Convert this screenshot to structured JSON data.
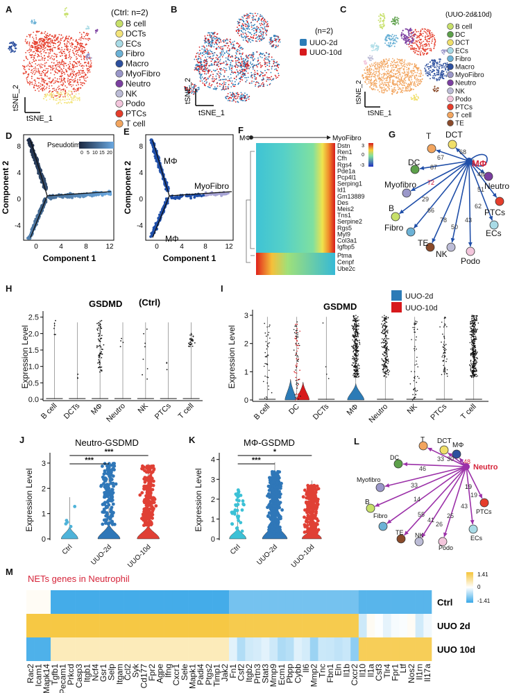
{
  "panel_labels": {
    "A": "A",
    "B": "B",
    "C": "C",
    "D": "D",
    "E": "E",
    "F": "F",
    "G": "G",
    "H": "H",
    "I": "I",
    "J": "J",
    "K": "K",
    "L": "L",
    "M": "M"
  },
  "tsne_axes": {
    "x": "tSNE_1",
    "y": "tSNE_2"
  },
  "colors": {
    "B cell": "#c7e06a",
    "DCTs": "#f3e47a",
    "ECs": "#a9dbe6",
    "Fibro": "#6cb2d6",
    "Macro": "#2c4f9e",
    "MyoFibro": "#9a97c9",
    "Neutro": "#7b3fa0",
    "NK": "#bcbcd6",
    "Podo": "#f3c6dc",
    "PTCs": "#e53d2b",
    "T cell": "#f2a55f",
    "DC": "#5da04a",
    "DCT": "#f0df6a",
    "TE": "#8a4a2a",
    "uuo2d": "#2c7bb6",
    "uuo10d": "#d7191c",
    "arrow_macro": "#1f4ea8",
    "arrow_neutro": "#9b30a8"
  },
  "panelA": {
    "legend_title": "(Ctrl: n=2)",
    "legend": [
      "B cell",
      "DCTs",
      "ECs",
      "Fibro",
      "Macro",
      "MyoFibro",
      "Neutro",
      "NK",
      "Podo",
      "PTCs",
      "T cell"
    ]
  },
  "panelB": {
    "legend_title": "(n=2)",
    "legend": [
      "UUO-2d",
      "UUO-10d"
    ]
  },
  "panelC": {
    "legend_title": "(UUO-2d&10d)",
    "legend": [
      "B cell",
      "DC",
      "DCT",
      "ECs",
      "Fibro",
      "Macro",
      "MyoFibro",
      "Neutro",
      "NK",
      "Podo",
      "PTCs",
      "T cell",
      "TE"
    ]
  },
  "panelD": {
    "xlabel": "Component 1",
    "ylabel": "Component 2",
    "legend_title": "Pseudotime",
    "legend_ticks": [
      "0",
      "5",
      "10",
      "15",
      "20"
    ],
    "xticks": [
      "0",
      "4",
      "8",
      "12"
    ],
    "yticks": [
      "-4",
      "0",
      "4",
      "8"
    ]
  },
  "panelE": {
    "xlabel": "Component 1",
    "ylabel": "Component 2",
    "labels": [
      "MΦ",
      "MyoFibro",
      "MΦ"
    ],
    "xticks": [
      "0",
      "4",
      "8",
      "12"
    ],
    "yticks": [
      "-4",
      "0",
      "4",
      "8"
    ]
  },
  "panelF": {
    "start": "MΦ",
    "end": "MyoFibro",
    "genes_top": [
      "Dstn",
      "Ren1",
      "Cfh",
      "Rgs4",
      "Pde1a",
      "Pcp4l1",
      "Serping1",
      "Id1",
      "Gm13889",
      "Des",
      "Meis2",
      "Tns1",
      "Serpine2",
      "Rgs5",
      "Myl9",
      "Col3a1",
      "Igfbp5"
    ],
    "genes_bottom": [
      "Ptma",
      "Cenpf",
      "Ube2c"
    ],
    "scale": [
      "3",
      "0",
      "-3"
    ]
  },
  "panelG": {
    "center": "MΦ",
    "nodes": [
      {
        "name": "T",
        "value": "67"
      },
      {
        "name": "DCT",
        "value": "68"
      },
      {
        "name": "DC",
        "value": "87"
      },
      {
        "name": "Myofibro",
        "value": "72"
      },
      {
        "name": "B",
        "value": "29"
      },
      {
        "name": "Fibro",
        "value": "66"
      },
      {
        "name": "TE",
        "value": "78"
      },
      {
        "name": "NK",
        "value": "50"
      },
      {
        "name": "Podo",
        "value": "43"
      },
      {
        "name": "ECs",
        "value": "62"
      },
      {
        "name": "PTCs",
        "value": "51"
      },
      {
        "name": "Neutro",
        "value": "48"
      },
      {
        "name": "self",
        "value": "58"
      }
    ]
  },
  "panelH": {
    "title": "GSDMD",
    "subtitle": "(Ctrl)",
    "ylabel": "Expression Level",
    "categories": [
      "B cell",
      "DCTs",
      "MΦ",
      "Neutro",
      "NK",
      "PTCs",
      "T cell"
    ],
    "yticks": [
      "0.0",
      "0.5",
      "1.0",
      "1.5",
      "2.0",
      "2.5"
    ]
  },
  "panelI": {
    "title": "GSDMD",
    "ylabel": "Expression Level",
    "categories": [
      "B cell",
      "DC",
      "DCTs",
      "MΦ",
      "Neutro",
      "NK",
      "PTCs",
      "T cell"
    ],
    "legend": [
      "UUO-2d",
      "UUO-10d"
    ],
    "yticks": [
      "0",
      "1",
      "2",
      "3"
    ]
  },
  "panelJ": {
    "title": "Neutro-GSDMD",
    "ylabel": "Expression Level",
    "categories": [
      "Ctrl",
      "UUO-2d",
      "UUO-10d"
    ],
    "sig": [
      "***",
      "***"
    ],
    "yticks": [
      "0",
      "1",
      "2",
      "3"
    ]
  },
  "panelK": {
    "title": "MΦ-GSDMD",
    "ylabel": "Expression Level",
    "categories": [
      "Ctrl",
      "UUO-2d",
      "UUO-10d"
    ],
    "sig": [
      "***",
      "*"
    ],
    "yticks": [
      "0",
      "1",
      "2",
      "3",
      "4"
    ]
  },
  "panelL": {
    "center": "Neutro",
    "nodes": [
      {
        "name": "T",
        "value": "33"
      },
      {
        "name": "DCT",
        "value": "30"
      },
      {
        "name": "MΦ",
        "value": "48"
      },
      {
        "name": "DC",
        "value": "46"
      },
      {
        "name": "Myofibro",
        "value": "33"
      },
      {
        "name": "B",
        "value": "14"
      },
      {
        "name": "Fibro",
        "value": "55"
      },
      {
        "name": "TE",
        "value": "41"
      },
      {
        "name": "NK",
        "value": "26"
      },
      {
        "name": "Podo",
        "value": "25"
      },
      {
        "name": "ECs",
        "value": "43"
      },
      {
        "name": "PTCs",
        "value": "19"
      }
    ]
  },
  "panelM": {
    "title": "NETs genes in Neutrophil",
    "rows": [
      "Ctrl",
      "UUO 2d",
      "UUO 10d"
    ],
    "scale": [
      "1.41",
      "0",
      "-1.41"
    ],
    "genes": [
      "Rac2",
      "Icam1",
      "Mapk14",
      "Tgfb1",
      "Pecam1",
      "Prkcd",
      "Casp3",
      "Itgb1",
      "Ncf4",
      "Gsr1",
      "Selp",
      "Itgam",
      "Ccl2",
      "Syk",
      "Cd177",
      "Fpr2",
      "Agpe",
      "Ifng",
      "Cxcr1",
      "Sele",
      "Mapk1",
      "Padi4",
      "Ptgs2",
      "Timp1",
      "Jak2",
      "Fn1",
      "Csf2",
      "Itgb2",
      "Prtn3",
      "Stat3",
      "Mmp9",
      "Ecm1",
      "Pbpp",
      "Cybb",
      "Il6",
      "Mmp2",
      "Tnc",
      "Fbn1",
      "Eln",
      "Il1b",
      "Cxcr2",
      "Il10",
      "Il1a",
      "Csf3",
      "Tlr4",
      "Fpr1",
      "Ltf",
      "Nos2",
      "Il1rn",
      "Il17a"
    ]
  }
}
